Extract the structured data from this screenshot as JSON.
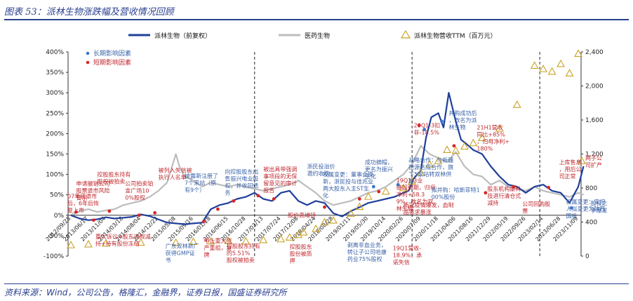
{
  "figure": {
    "title": "图表 53：派林生物涨跌幅及营收情况回顾",
    "source": "资料来源：Wind，公司公告，格隆汇，金融界，证券日报，国盛证券研究所"
  },
  "colors": {
    "accent": "#2a3f8f",
    "stock": "#1f3f9a",
    "index": "#bdbdbd",
    "revenue": "#c9a227",
    "long_dot": "#3a78c9",
    "short_dot": "#d62728",
    "ann_blue": "#3a63a8",
    "ann_red": "#c0272d"
  },
  "chart_data": {
    "type": "line",
    "title": "",
    "legend_position": "top",
    "legend": {
      "series": [
        "派林生物（前复权）",
        "医药生物",
        "派林生物营收TTM（百万元）"
      ],
      "markers": [
        "长期影响因素",
        "短期影响因素"
      ]
    },
    "left_axis": {
      "ylim": [
        -100,
        400
      ],
      "ticks": [
        "-100%",
        "-50%",
        "0%",
        "50%",
        "100%",
        "150%",
        "200%",
        "250%",
        "300%",
        "350%",
        "400%"
      ]
    },
    "right_axis": {
      "ylim": [
        0,
        2400
      ],
      "ticks": [
        "0",
        "400",
        "800",
        "1,200",
        "1,600",
        "2,000",
        "2,400"
      ]
    },
    "x_ticks": [
      "2012/09/28",
      "2013/06/17",
      "2013/11/04",
      "2014/03/18",
      "2014/08/04",
      "2014/12/22",
      "2015/05/08",
      "2015/09/16",
      "2016/01/28",
      "2016/06/15",
      "2016/10/28",
      "2017/03/13",
      "2017/07/24",
      "2017/12/08",
      "2018/04/24",
      "2018/08/28",
      "2019/01/11",
      "2019/05/30",
      "2019/10/14",
      "2020/02/26",
      "2020/07/09",
      "2020/11/18",
      "2021/04/06",
      "2021/08/16",
      "2021/12/29",
      "2022/05/19",
      "2022/09/26",
      "2023/02/14",
      "2023/06/28",
      "2023/11/09"
    ],
    "vlines_at_tick_index": [
      10.5,
      19.5,
      26.8
    ],
    "stock_series": {
      "name": "派林生物（前复权）",
      "x": [
        0,
        0.5,
        1,
        1.5,
        2,
        2.5,
        3,
        3.5,
        4,
        4.5,
        5,
        5.5,
        6,
        6.5,
        7,
        7.5,
        8,
        8.5,
        9,
        9.5,
        10,
        10.5,
        11,
        11.5,
        12,
        12.5,
        13,
        13.5,
        14,
        14.5,
        15,
        15.5,
        16,
        16.5,
        17,
        17.5,
        18,
        18.5,
        19,
        19.3,
        19.6,
        20,
        20.3,
        20.6,
        21,
        21.3,
        21.6,
        22,
        22.3,
        22.6,
        23,
        23.5,
        24,
        24.5,
        25,
        25.5,
        26,
        26.5,
        27,
        27.5,
        28,
        28.5,
        29,
        29.3
      ],
      "y": [
        0,
        -8,
        -12,
        -10,
        -5,
        -8,
        -6,
        -4,
        2,
        -2,
        -10,
        -18,
        -20,
        -22,
        -20,
        -18,
        15,
        25,
        30,
        40,
        45,
        55,
        40,
        35,
        55,
        60,
        35,
        25,
        35,
        30,
        5,
        -3,
        10,
        20,
        30,
        35,
        40,
        45,
        55,
        60,
        90,
        110,
        190,
        240,
        250,
        215,
        300,
        230,
        185,
        175,
        160,
        150,
        120,
        95,
        75,
        70,
        55,
        70,
        75,
        60,
        55,
        30,
        70,
        120
      ]
    },
    "index_series": {
      "name": "医药生物",
      "x": [
        0,
        0.5,
        1,
        1.5,
        2,
        2.5,
        3,
        3.5,
        4,
        4.5,
        5,
        5.5,
        6,
        6.2,
        6.5,
        7,
        7.5,
        8,
        8.5,
        9,
        9.5,
        10,
        10.5,
        11,
        11.5,
        12,
        12.5,
        13,
        13.5,
        14,
        14.5,
        15,
        15.5,
        16,
        16.5,
        17,
        17.5,
        18,
        18.5,
        19,
        19.5,
        20,
        20.5,
        21,
        21.5,
        22,
        22.5,
        23,
        23.5,
        24,
        24.5,
        25,
        25.5,
        26,
        26.5,
        27,
        27.5,
        28,
        28.5,
        29,
        29.3
      ],
      "y": [
        0,
        10,
        15,
        8,
        12,
        15,
        25,
        30,
        35,
        45,
        60,
        80,
        150,
        120,
        95,
        85,
        70,
        80,
        75,
        70,
        75,
        70,
        65,
        60,
        65,
        70,
        75,
        85,
        70,
        55,
        35,
        25,
        30,
        35,
        45,
        55,
        60,
        70,
        85,
        100,
        125,
        170,
        150,
        140,
        130,
        155,
        120,
        100,
        95,
        75,
        85,
        70,
        65,
        60,
        70,
        60,
        55,
        50,
        45,
        55,
        50
      ]
    },
    "revenue_points": {
      "name": "派林生物营收TTM（百万元）",
      "x": [
        0,
        1,
        2,
        4,
        6,
        7,
        8,
        9,
        10,
        11,
        12,
        12.5,
        13,
        13.3,
        14,
        14.5,
        15,
        16,
        16.5,
        17,
        18,
        19,
        19.5,
        20,
        20.5,
        21,
        21.5,
        22,
        22.5,
        23,
        23.5,
        24.5,
        25.5,
        26.5,
        27,
        27.5,
        28,
        28.5,
        29,
        29.2
      ],
      "y": [
        130,
        140,
        150,
        160,
        160,
        170,
        175,
        180,
        175,
        190,
        200,
        220,
        250,
        280,
        320,
        400,
        420,
        500,
        580,
        700,
        760,
        800,
        880,
        980,
        1080,
        1120,
        1250,
        1240,
        1290,
        1330,
        1390,
        1500,
        1780,
        2240,
        2200,
        2170,
        2260,
        2150,
        2380,
        1120
      ]
    },
    "long_term_dots": [
      {
        "x": 17.3,
        "y": 70
      },
      {
        "x": 18.7,
        "y": 75
      },
      {
        "x": 20.2,
        "y": 210
      },
      {
        "x": 21.2,
        "y": 230
      },
      {
        "x": 28.6,
        "y": 18
      }
    ],
    "short_term_dots": [
      {
        "x": 0.3,
        "y": 8
      },
      {
        "x": 1.3,
        "y": -12
      },
      {
        "x": 2.2,
        "y": 10
      },
      {
        "x": 3.9,
        "y": 0
      },
      {
        "x": 4.8,
        "y": 6
      },
      {
        "x": 7.6,
        "y": -15
      },
      {
        "x": 8.4,
        "y": 15
      },
      {
        "x": 9.3,
        "y": 35
      },
      {
        "x": 10.7,
        "y": 48
      },
      {
        "x": 11.6,
        "y": 40
      },
      {
        "x": 14.5,
        "y": 20
      },
      {
        "x": 16.5,
        "y": 40
      },
      {
        "x": 17.6,
        "y": 58
      },
      {
        "x": 19.9,
        "y": 220
      },
      {
        "x": 21.9,
        "y": 170
      },
      {
        "x": 23.7,
        "y": 55
      },
      {
        "x": 25.3,
        "y": 70
      },
      {
        "x": 27.3,
        "y": 68
      }
    ],
    "annotations": [
      {
        "text": "07年底退市后，6年后恢复上市",
        "color": "red",
        "x": -0.2,
        "y": 42,
        "lines": 3,
        "wrap": 6
      },
      {
        "text": "申请撤销公司股票退市风险警示",
        "color": "red",
        "x": 0.3,
        "y": 73,
        "wrap": 6
      },
      {
        "text": "控股股东持有股权被拍卖",
        "color": "red",
        "x": 1.5,
        "y": 95,
        "wrap": 6
      },
      {
        "text": "公司拍卖铂金广场100%股权",
        "color": "red",
        "x": 3.1,
        "y": 73,
        "wrap": 5
      },
      {
        "text": "被列入失信被执行人名单",
        "color": "red",
        "x": 5.0,
        "y": 105,
        "wrap": 6
      },
      {
        "text": "披露新注册了7个采站（原有9个）",
        "color": "blue",
        "x": 6.5,
        "y": 92,
        "wrap": 6
      },
      {
        "text": "向控股股东出售振兴电业股权，并收回债务",
        "color": "blue",
        "x": 8.8,
        "y": 102,
        "wrap": 6
      },
      {
        "text": "被出具带强调事项段的无保留意见的审计报告",
        "color": "red",
        "x": 11.0,
        "y": 108,
        "wrap": 6
      },
      {
        "text": "浙民投溢价邀约收购",
        "color": "blue",
        "x": 13.5,
        "y": 115,
        "wrap": 5
      },
      {
        "text": "权属变更：董事会换新，浙民投与佳兆业两大股东入主ST生化",
        "color": "blue",
        "x": 14.4,
        "y": 95,
        "wrap": 9
      },
      {
        "text": "成功摘帽，更名为振兴生化",
        "color": "blue",
        "x": 16.8,
        "y": 125,
        "wrap": 5
      },
      {
        "text": "19Q1-3业绩超预期，归母净利+58.39%，改名为双林生物",
        "color": "red",
        "x": 18.6,
        "y": 80,
        "wrap": 7
      },
      {
        "text": "战略合作：与新疆德源达成合作，旗下5家站转双林供浆",
        "color": "blue",
        "x": 19.3,
        "y": 130,
        "wrap": 8
      },
      {
        "text": "20Q1-3扣非-18.5%",
        "color": "red",
        "x": 19.6,
        "y": 215,
        "wrap": 7
      },
      {
        "text": "并购成功后，改名为派林生物",
        "color": "blue",
        "x": 21.6,
        "y": 245,
        "wrap": 5
      },
      {
        "text": "21H1营收同比+85%，归母净利+180%",
        "color": "red",
        "x": 23.2,
        "y": 210,
        "wrap": 6
      },
      {
        "text": "新冠疫情爆发，血制品需求暴涨",
        "color": "red",
        "x": 19.0,
        "y": 20,
        "wrap": 9
      },
      {
        "text": "拟并购：哈斯菲特100%股份",
        "color": "blue",
        "x": 20.6,
        "y": 57,
        "wrap": 9
      },
      {
        "text": "股东机构康科技进行清仓式减持",
        "color": "red",
        "x": 23.8,
        "y": 60,
        "wrap": 6
      },
      {
        "text": "公司回购股票",
        "color": "red",
        "x": 25.8,
        "y": 23,
        "wrap": 5
      },
      {
        "text": "上库售息，用后公司正常",
        "color": "red",
        "x": 27.9,
        "y": 125,
        "wrap": 4
      },
      {
        "text": "两子公司扩产",
        "color": "red",
        "x": 29.4,
        "y": 135,
        "wrap": 3
      },
      {
        "text": "权属变更：实控人拟变更为陕西国投",
        "color": "blue",
        "x": 28.3,
        "y": 28,
        "wrap": 7
      },
      {
        "text": "股权之争爆发",
        "color": "blue",
        "x": 29.7,
        "y": 25,
        "wrap": 3
      },
      {
        "text": "股价高增持",
        "color": "red",
        "x": 12.4,
        "y": -5,
        "wrap": 6
      },
      {
        "text": "重大诉讼+股东违规减持+持有股份冻结",
        "color": "red",
        "x": 1.4,
        "y": -57,
        "wrap": 10
      },
      {
        "text": "广东双林新厂获得GMP证书",
        "color": "blue",
        "x": 5.4,
        "y": -80,
        "wrap": 6
      },
      {
        "text": "中止重大资产重组，复牌",
        "color": "red",
        "x": 7.6,
        "y": -67,
        "wrap": 5
      },
      {
        "text": "控股股东持有的5.51%股权被拍卖",
        "color": "red",
        "x": 8.9,
        "y": -80,
        "wrap": 6
      },
      {
        "text": "控股股东股份被质押",
        "color": "red",
        "x": 12.5,
        "y": -82,
        "wrap": 4
      },
      {
        "text": "剥离非血业务，转让子公司哈康药业75%股权",
        "color": "blue",
        "x": 15.8,
        "y": -78,
        "wrap": 7
      },
      {
        "text": "19Q1营收-18.9%，承诺失信",
        "color": "red",
        "x": 18.4,
        "y": -85,
        "wrap": 7
      }
    ]
  }
}
